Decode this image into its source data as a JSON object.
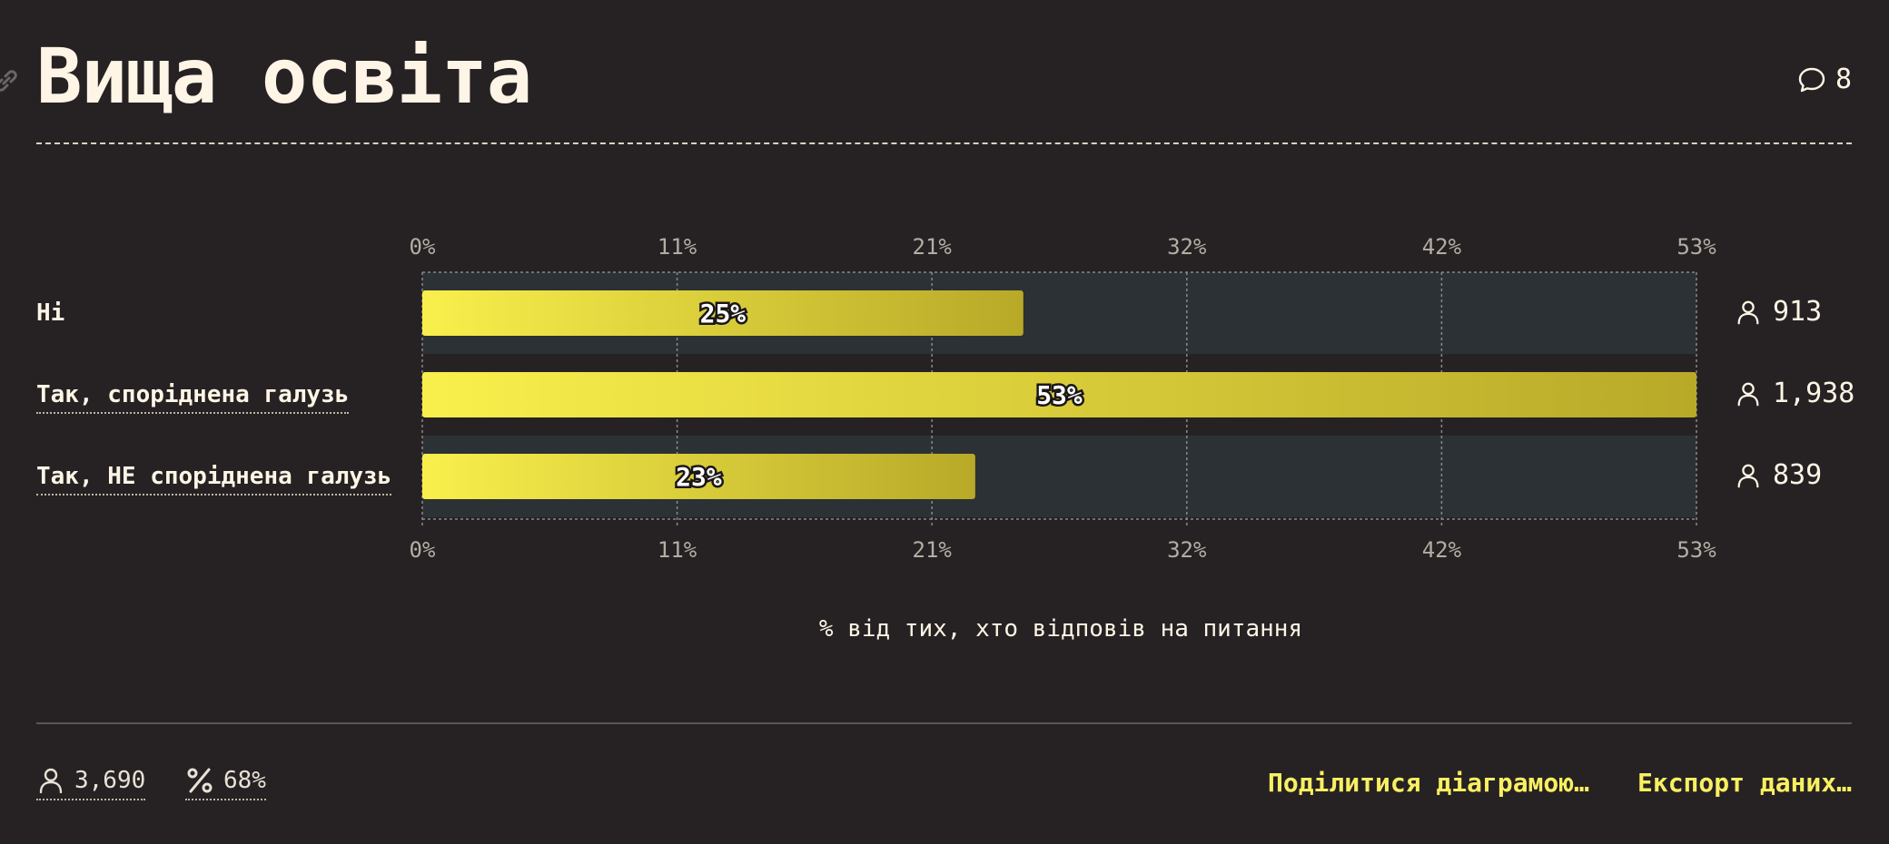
{
  "title": "Вища освіта",
  "comments_count": "8",
  "chart_data": {
    "type": "bar",
    "orientation": "horizontal",
    "categories": [
      "Ні",
      "Так, споріднена галузь",
      "Так, НЕ споріднена галузь"
    ],
    "values": [
      25,
      53,
      23
    ],
    "value_labels": [
      "25%",
      "53%",
      "23%"
    ],
    "counts": [
      "913",
      "1,938",
      "839"
    ],
    "xlim": [
      0,
      53
    ],
    "ticks": [
      0,
      10.6,
      21.2,
      31.8,
      42.4,
      53
    ],
    "tick_labels": [
      "0%",
      "11%",
      "21%",
      "32%",
      "42%",
      "53%"
    ],
    "xlabel": "% від тих, хто відповів на питання",
    "grid": true,
    "colors": {
      "bar_start": "#f9ef4c",
      "bar_end": "#b8a928",
      "track": "#2c3135",
      "background": "#262223"
    }
  },
  "footer": {
    "respondents": "3,690",
    "response_rate": "68%",
    "share_label": "Поділитися діаграмою…",
    "export_label": "Експорт даних…"
  },
  "icons": {
    "link": "link-icon",
    "comments": "speech-bubble-icon",
    "person": "person-icon",
    "percent": "percent-icon"
  }
}
